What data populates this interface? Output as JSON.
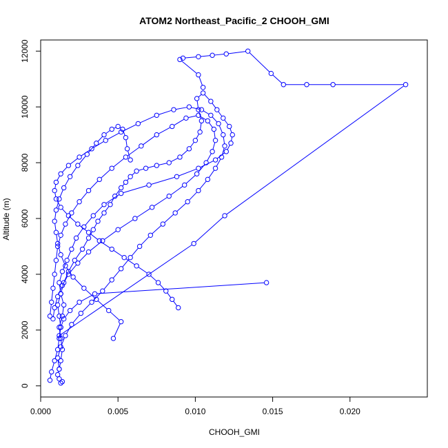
{
  "chart_data": {
    "type": "line",
    "title": "ATOM2 Northeast_Pacific_2 CHOOH_GMI",
    "xlabel": "CHOOH_GMI",
    "ylabel": "Altitude (m)",
    "xlim": [
      0,
      0.025
    ],
    "ylim": [
      -400,
      12400
    ],
    "x_ticks": [
      0.0,
      0.005,
      0.01,
      0.015,
      0.02
    ],
    "x_tick_labels": [
      "0.000",
      "0.005",
      "0.010",
      "0.015",
      "0.020"
    ],
    "y_ticks": [
      0,
      2000,
      4000,
      6000,
      8000,
      10000,
      12000
    ],
    "y_tick_labels": [
      "0",
      "2000",
      "4000",
      "6000",
      "8000",
      "10000",
      "12000"
    ],
    "grid": false,
    "color": "#0000ff",
    "markers": "open-circle",
    "series": [
      {
        "x": [
          0.0006,
          0.0007,
          0.0009,
          0.0011,
          0.0012,
          0.0013,
          0.0012,
          0.0011,
          0.0013,
          0.0015,
          0.0018,
          0.0022,
          0.0027,
          0.0031,
          0.0034,
          0.0037,
          0.0041,
          0.0045,
          0.0048,
          0.0052,
          0.0055,
          0.0058,
          0.0062,
          0.0068,
          0.0075,
          0.0083,
          0.009,
          0.0096,
          0.01,
          0.0103,
          0.0104,
          0.0102,
          0.0101,
          0.0105,
          0.011,
          0.0114,
          0.0118,
          0.0122,
          0.0124,
          0.0123,
          0.012,
          0.0113,
          0.0102,
          0.0088,
          0.007,
          0.0052,
          0.0041,
          0.0034,
          0.0028,
          0.0023,
          0.002,
          0.0017,
          0.0014,
          0.0012,
          0.0013,
          0.0015,
          0.0014,
          0.0012,
          0.0013,
          0.0014,
          0.0013,
          0.0012,
          0.0011,
          0.0012,
          0.0014,
          0.0013
        ],
        "y": [
          200,
          500,
          900,
          1300,
          1700,
          2100,
          2500,
          2900,
          3300,
          3700,
          4100,
          4500,
          4900,
          5300,
          5600,
          5900,
          6200,
          6500,
          6800,
          7100,
          7300,
          7500,
          7700,
          7800,
          7900,
          8000,
          8200,
          8500,
          8800,
          9100,
          9500,
          9900,
          10300,
          10500,
          10200,
          9900,
          9600,
          9300,
          9000,
          8700,
          8400,
          8100,
          7800,
          7500,
          7200,
          6900,
          6500,
          6100,
          5700,
          5300,
          4900,
          4500,
          4100,
          3700,
          3300,
          2900,
          2500,
          2100,
          1700,
          1300,
          900,
          600,
          400,
          250,
          150,
          100
        ]
      },
      {
        "x": [
          0.0012,
          0.0011,
          0.0013,
          0.0016,
          0.002,
          0.0026,
          0.0033,
          0.004,
          0.0046,
          0.0052,
          0.0058,
          0.0064,
          0.0071,
          0.0079,
          0.0087,
          0.0095,
          0.0102,
          0.0108,
          0.0113,
          0.0117,
          0.0119,
          0.0118,
          0.0115,
          0.011,
          0.0104,
          0.0096,
          0.0086,
          0.0075,
          0.0063,
          0.0052,
          0.0042,
          0.0033,
          0.0025,
          0.0018,
          0.0013,
          0.001,
          0.0009,
          0.001,
          0.0013,
          0.0018,
          0.0024,
          0.0031,
          0.0038,
          0.0046,
          0.0054,
          0.0062,
          0.007,
          0.0076,
          0.0081,
          0.0085,
          0.0089
        ],
        "y": [
          600,
          1000,
          1400,
          1800,
          2200,
          2600,
          3000,
          3400,
          3800,
          4200,
          4600,
          5000,
          5400,
          5800,
          6200,
          6600,
          7000,
          7400,
          7800,
          8200,
          8600,
          9000,
          9400,
          9700,
          9900,
          10000,
          9900,
          9700,
          9400,
          9100,
          8800,
          8500,
          8200,
          7900,
          7600,
          7300,
          7000,
          6700,
          6400,
          6100,
          5800,
          5500,
          5200,
          4900,
          4600,
          4300,
          4000,
          3700,
          3400,
          3100,
          2800
        ]
      },
      {
        "x": [
          0.0008,
          0.0009,
          0.0011,
          0.0014,
          0.0018,
          0.0024,
          0.0031,
          0.004,
          0.005,
          0.0061,
          0.0072,
          0.0083,
          0.0093,
          0.0101,
          0.0107,
          0.0111,
          0.0113,
          0.0112,
          0.0108,
          0.0102,
          0.0094,
          0.0085,
          0.0075,
          0.0065,
          0.0055,
          0.0046,
          0.0038,
          0.0031,
          0.0025,
          0.002,
          0.0016,
          0.0013,
          0.0011,
          0.001,
          0.0009,
          0.0008,
          0.0007,
          0.0006
        ],
        "y": [
          2400,
          2800,
          3200,
          3600,
          4000,
          4400,
          4800,
          5200,
          5600,
          6000,
          6400,
          6800,
          7200,
          7600,
          8000,
          8400,
          8800,
          9200,
          9500,
          9700,
          9600,
          9300,
          9000,
          8600,
          8200,
          7800,
          7400,
          7000,
          6600,
          6200,
          5800,
          5400,
          5000,
          4500,
          4000,
          3500,
          3000,
          2500
        ]
      },
      {
        "x": [
          0.0146,
          0.0035,
          0.0025,
          0.0019,
          0.0015,
          0.0013,
          0.0012,
          0.0099,
          0.0119,
          0.0236,
          0.0189,
          0.0172,
          0.0157,
          0.0149,
          0.0134,
          0.012,
          0.0111,
          0.0102,
          0.0092,
          0.009,
          0.0102,
          0.0105
        ],
        "y": [
          3700,
          3300,
          3000,
          2700,
          2400,
          2100,
          1800,
          5100,
          6100,
          10800,
          10800,
          10800,
          10800,
          11200,
          12000,
          11900,
          11850,
          11800,
          11750,
          11700,
          11150,
          10700
        ]
      },
      {
        "x": [
          0.0047,
          0.0052,
          0.0044,
          0.0036,
          0.0028,
          0.0021,
          0.0016,
          0.0013,
          0.0011,
          0.001,
          0.0009,
          0.001,
          0.0012,
          0.0015,
          0.0019,
          0.0024,
          0.003,
          0.0036,
          0.0041,
          0.0046,
          0.005,
          0.0053,
          0.0055,
          0.0056,
          0.0058
        ],
        "y": [
          1700,
          2300,
          2700,
          3100,
          3500,
          3900,
          4300,
          4700,
          5100,
          5500,
          5900,
          6300,
          6700,
          7100,
          7500,
          7900,
          8300,
          8700,
          9000,
          9200,
          9300,
          9200,
          8900,
          8500,
          8100
        ]
      }
    ]
  }
}
